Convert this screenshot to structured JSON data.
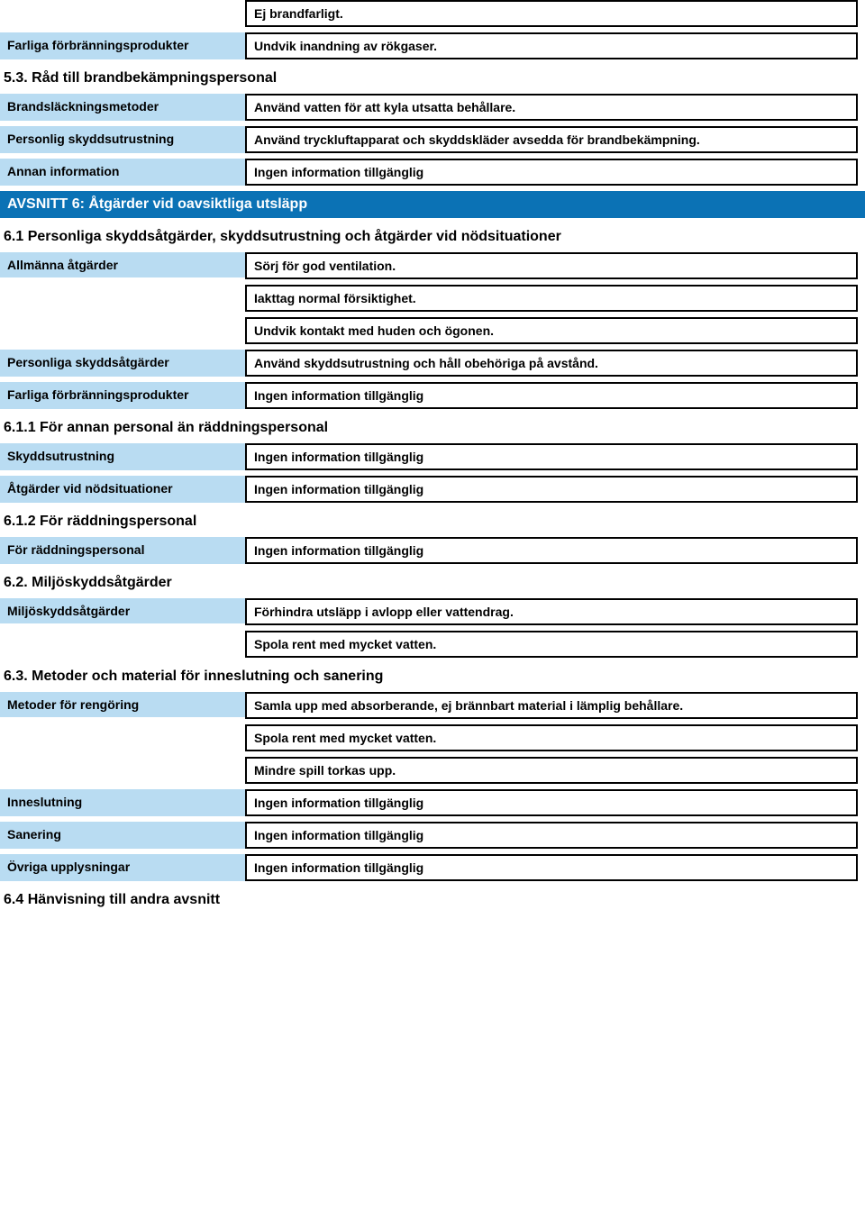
{
  "colors": {
    "label_bg": "#b9dcf2",
    "section_bar_bg": "#0b72b5",
    "section_bar_text": "#ffffff",
    "border": "#000000",
    "page_bg": "#ffffff",
    "text": "#000000"
  },
  "typography": {
    "base_font": "Arial",
    "label_size_pt": 11,
    "value_size_pt": 11,
    "heading_size_pt": 12,
    "weight": "bold"
  },
  "top_values": {
    "v1": "Ej brandfarligt.",
    "v2": "Undvik inandning av rökgaser."
  },
  "labels_top": {
    "farliga_forbranningsprodukter": "Farliga förbränningsprodukter"
  },
  "section_5_3": {
    "heading": "5.3. Råd till brandbekämpningspersonal",
    "rows": {
      "brandslackningsmetoder_label": "Brandsläckningsmetoder",
      "brandslackningsmetoder_value": "Använd vatten för att kyla utsatta behållare.",
      "personlig_skyddsutrustning_label": "Personlig skyddsutrustning",
      "personlig_skyddsutrustning_value": "Använd tryckluftapparat och skyddskläder avsedda för brandbekämpning.",
      "annan_information_label": "Annan information",
      "annan_information_value": "Ingen information tillgänglig"
    }
  },
  "avsnitt6": {
    "bar": "AVSNITT 6: Åtgärder vid oavsiktliga utsläpp"
  },
  "section_6_1": {
    "heading": "6.1 Personliga skyddsåtgärder, skyddsutrustning och åtgärder vid nödsituationer",
    "allmanna_label": "Allmänna åtgärder",
    "allmanna_values": {
      "a": "Sörj för god ventilation.",
      "b": "Iakttag normal försiktighet.",
      "c": "Undvik kontakt med huden och ögonen."
    },
    "personliga_skydds_label": "Personliga skyddsåtgärder",
    "personliga_skydds_value": "Använd skyddsutrustning och håll obehöriga på avstånd.",
    "farliga_forbr_label": "Farliga förbränningsprodukter",
    "farliga_forbr_value": "Ingen information tillgänglig"
  },
  "section_6_1_1": {
    "heading": "6.1.1 För annan personal än räddningspersonal",
    "skyddsutrustning_label": "Skyddsutrustning",
    "skyddsutrustning_value": "Ingen information tillgänglig",
    "atgarder_nod_label": "Åtgärder vid nödsituationer",
    "atgarder_nod_value": "Ingen information tillgänglig"
  },
  "section_6_1_2": {
    "heading": "6.1.2 För räddningspersonal",
    "for_raddning_label": "För räddningspersonal",
    "for_raddning_value": "Ingen information tillgänglig"
  },
  "section_6_2": {
    "heading": "6.2. Miljöskyddsåtgärder",
    "miljo_label": "Miljöskyddsåtgärder",
    "miljo_values": {
      "a": "Förhindra utsläpp i avlopp eller vattendrag.",
      "b": "Spola rent med mycket vatten."
    }
  },
  "section_6_3": {
    "heading": "6.3. Metoder och material för inneslutning och sanering",
    "metoder_label": "Metoder för rengöring",
    "metoder_values": {
      "a": "Samla upp med absorberande, ej brännbart material i lämplig behållare.",
      "b": "Spola rent med mycket vatten.",
      "c": "Mindre spill torkas upp."
    },
    "inneslutning_label": "Inneslutning",
    "inneslutning_value": "Ingen information tillgänglig",
    "sanering_label": "Sanering",
    "sanering_value": "Ingen information tillgänglig",
    "ovriga_label": "Övriga upplysningar",
    "ovriga_value": "Ingen information tillgänglig"
  },
  "section_6_4": {
    "heading": "6.4 Hänvisning till andra avsnitt"
  }
}
